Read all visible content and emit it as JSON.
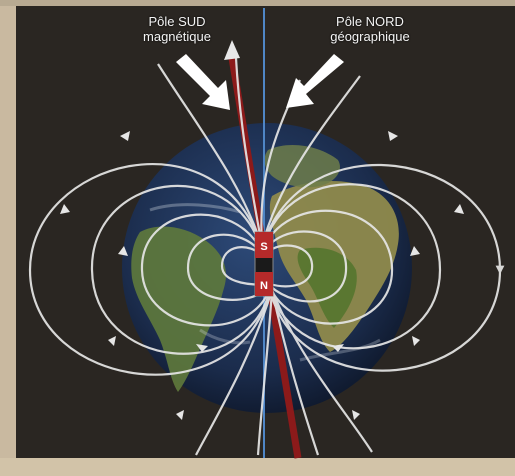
{
  "labels": {
    "south_magnetic": [
      "Pôle SUD",
      "magnétique"
    ],
    "north_geographic": [
      "Pôle NORD",
      "géographique"
    ],
    "magnet_top": "S",
    "magnet_bottom": "N"
  },
  "colors": {
    "background": "#2a2622",
    "frame_left": "#c9b9a0",
    "frame_bottom": "#d2c3a8",
    "ocean": "#20355a",
    "land": "#5f7a3c",
    "land_dry": "#9c8b55",
    "field_lines": "#e6e6e6",
    "magnetic_axis": "#8c1a1a",
    "geographic_axis": "#4f86c6",
    "pointer_arrows": "#ffffff"
  },
  "icons": [
    "pointer-arrow-icon",
    "axis-arrowhead-icon"
  ]
}
